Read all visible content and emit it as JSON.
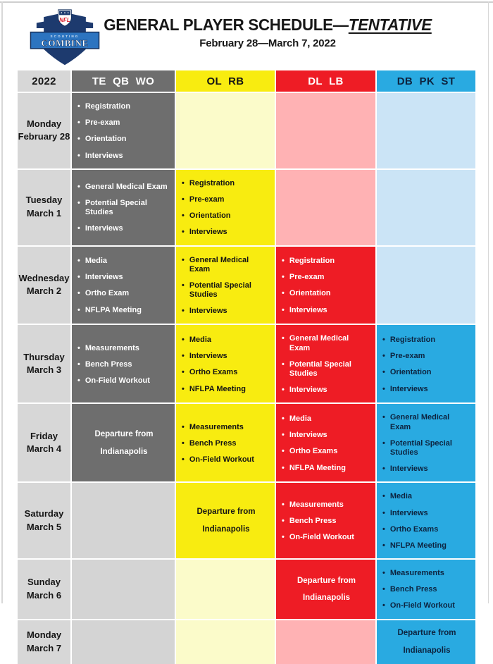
{
  "page": {
    "title_main": "GENERAL PLAYER SCHEDULE—",
    "title_emphasis": "TENTATIVE",
    "subtitle": "February 28—March 7, 2022"
  },
  "logo": {
    "nfl_label": "NFL",
    "scouting_label": "SCOUTING",
    "combine_label": "COMBINE"
  },
  "table": {
    "columns": [
      {
        "key": "date",
        "label": "2022"
      },
      {
        "key": "te_qb_wo",
        "label": "TE QB WO"
      },
      {
        "key": "ol_rb",
        "label": "OL RB"
      },
      {
        "key": "dl_lb",
        "label": "DL LB"
      },
      {
        "key": "db_pk_st",
        "label": "DB PK ST"
      }
    ],
    "rows": [
      {
        "day": "Monday",
        "date": "February 28",
        "cells": {
          "te_qb_wo": {
            "type": "list",
            "items": [
              "Registration",
              "Pre-exam",
              "Orientation",
              "Interviews"
            ]
          },
          "ol_rb": {
            "type": "empty"
          },
          "dl_lb": {
            "type": "empty"
          },
          "db_pk_st": {
            "type": "empty"
          }
        }
      },
      {
        "day": "Tuesday",
        "date": "March 1",
        "cells": {
          "te_qb_wo": {
            "type": "list",
            "items": [
              "General Medical Exam",
              "Potential Special Studies",
              "Interviews"
            ]
          },
          "ol_rb": {
            "type": "list",
            "items": [
              "Registration",
              "Pre-exam",
              "Orientation",
              "Interviews"
            ]
          },
          "dl_lb": {
            "type": "empty"
          },
          "db_pk_st": {
            "type": "empty"
          }
        }
      },
      {
        "day": "Wednesday",
        "date": "March 2",
        "cells": {
          "te_qb_wo": {
            "type": "list",
            "items": [
              "Media",
              "Interviews",
              "Ortho Exam",
              "NFLPA Meeting"
            ]
          },
          "ol_rb": {
            "type": "list",
            "items": [
              "General Medical Exam",
              "Potential Special Studies",
              "Interviews"
            ]
          },
          "dl_lb": {
            "type": "list",
            "items": [
              "Registration",
              "Pre-exam",
              "Orientation",
              "Interviews"
            ]
          },
          "db_pk_st": {
            "type": "empty"
          }
        }
      },
      {
        "day": "Thursday",
        "date": "March 3",
        "cells": {
          "te_qb_wo": {
            "type": "list",
            "items": [
              "Measurements",
              "Bench Press",
              "On-Field Workout"
            ]
          },
          "ol_rb": {
            "type": "list",
            "items": [
              "Media",
              "Interviews",
              "Ortho Exams",
              "NFLPA Meeting"
            ]
          },
          "dl_lb": {
            "type": "list",
            "items": [
              "General Medical Exam",
              "Potential Special Studies",
              "Interviews"
            ]
          },
          "db_pk_st": {
            "type": "list",
            "items": [
              "Registration",
              "Pre-exam",
              "Orientation",
              "Interviews"
            ]
          }
        }
      },
      {
        "day": "Friday",
        "date": "March 4",
        "cells": {
          "te_qb_wo": {
            "type": "departure",
            "lines": [
              "Departure from",
              "Indianapolis"
            ]
          },
          "ol_rb": {
            "type": "list",
            "items": [
              "Measurements",
              "Bench Press",
              "On-Field Workout"
            ]
          },
          "dl_lb": {
            "type": "list",
            "items": [
              "Media",
              "Interviews",
              "Ortho Exams",
              "NFLPA Meeting"
            ]
          },
          "db_pk_st": {
            "type": "list",
            "items": [
              "General Medical Exam",
              "Potential Special Studies",
              "Interviews"
            ]
          }
        }
      },
      {
        "day": "Saturday",
        "date": "March 5",
        "cells": {
          "te_qb_wo": {
            "type": "empty"
          },
          "ol_rb": {
            "type": "departure",
            "lines": [
              "Departure from",
              "Indianapolis"
            ]
          },
          "dl_lb": {
            "type": "list",
            "items": [
              "Measurements",
              "Bench Press",
              "On-Field Workout"
            ]
          },
          "db_pk_st": {
            "type": "list",
            "items": [
              "Media",
              "Interviews",
              "Ortho Exams",
              "NFLPA Meeting"
            ]
          }
        }
      },
      {
        "day": "Sunday",
        "date": "March 6",
        "cells": {
          "te_qb_wo": {
            "type": "empty"
          },
          "ol_rb": {
            "type": "empty"
          },
          "dl_lb": {
            "type": "departure",
            "lines": [
              "Departure from",
              "Indianapolis"
            ]
          },
          "db_pk_st": {
            "type": "list",
            "items": [
              "Measurements",
              "Bench Press",
              "On-Field Workout"
            ]
          }
        }
      },
      {
        "day": "Monday",
        "date": "March 7",
        "cells": {
          "te_qb_wo": {
            "type": "empty"
          },
          "ol_rb": {
            "type": "empty"
          },
          "dl_lb": {
            "type": "empty"
          },
          "db_pk_st": {
            "type": "departure",
            "lines": [
              "Departure from",
              "Indianapolis"
            ]
          }
        }
      }
    ]
  },
  "colors": {
    "date_bg": "#d7d7d7",
    "gray_active": "#6e6e6e",
    "gray_inactive": "#d4d4d4",
    "yellow_active": "#f8ec10",
    "yellow_inactive": "#fbfbca",
    "red_active": "#ee1c25",
    "red_inactive": "#ffb2b4",
    "blue_active": "#29aae1",
    "blue_inactive": "#cbe4f6",
    "blue_text": "#0d2440",
    "logo_navy": "#1d3a6e",
    "logo_band_blue": "#2c74c0",
    "logo_nfl_red": "#d81f2e"
  }
}
